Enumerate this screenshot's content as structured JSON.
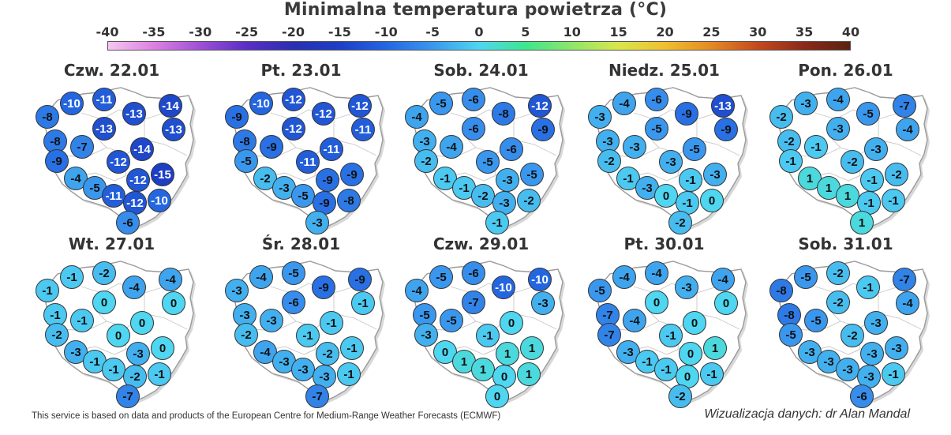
{
  "title": "Minimalna temperatura powietrza (°C)",
  "scale": {
    "labels": [
      "-40",
      "-35",
      "-30",
      "-25",
      "-20",
      "-15",
      "-10",
      "-5",
      "0",
      "5",
      "10",
      "15",
      "20",
      "25",
      "30",
      "35",
      "40"
    ],
    "values": [
      -40,
      -35,
      -30,
      -25,
      -20,
      -15,
      -10,
      -5,
      0,
      5,
      10,
      15,
      20,
      25,
      30,
      35,
      40
    ],
    "colors": [
      "#f4c7f0",
      "#dc7fe0",
      "#9d4fd6",
      "#5a2ec4",
      "#2a2fb0",
      "#1d3fc4",
      "#2466e0",
      "#3a97ee",
      "#4fd6f0",
      "#3ee68f",
      "#8ee66a",
      "#d8e64e",
      "#f0c030",
      "#e48a24",
      "#c44a1e",
      "#8c2a1a",
      "#5a2210"
    ]
  },
  "days": [
    {
      "label": "Czw. 22.01",
      "temps": [
        -10,
        -11,
        -8,
        -13,
        -14,
        -13,
        -8,
        -7,
        -13,
        -9,
        -14,
        -12,
        -4,
        -12,
        -15,
        -5,
        -11,
        -12,
        -10,
        -6
      ]
    },
    {
      "label": "Pt. 23.01",
      "temps": [
        -10,
        -12,
        -9,
        -12,
        -12,
        -11,
        -8,
        -9,
        -12,
        -5,
        -11,
        -11,
        -2,
        -9,
        -9,
        -3,
        -5,
        -9,
        -8,
        -3
      ]
    },
    {
      "label": "Sob. 24.01",
      "temps": [
        -5,
        -6,
        -4,
        -8,
        -12,
        -9,
        -3,
        -4,
        -6,
        -2,
        -6,
        -5,
        -1,
        -3,
        -5,
        -1,
        -2,
        -3,
        -2,
        -1
      ]
    },
    {
      "label": "Niedz. 25.01",
      "temps": [
        -4,
        -6,
        -3,
        -9,
        -13,
        -9,
        -3,
        -3,
        -5,
        -2,
        -5,
        -3,
        -1,
        -1,
        -3,
        -3,
        0,
        -1,
        0,
        -2
      ]
    },
    {
      "label": "Pon. 26.01",
      "temps": [
        -3,
        -4,
        -2,
        -5,
        -7,
        -4,
        -2,
        -1,
        -3,
        -1,
        -3,
        -2,
        1,
        -1,
        -2,
        1,
        1,
        -1,
        -1,
        1
      ]
    },
    {
      "label": "Wt. 27.01",
      "temps": [
        -1,
        -2,
        -1,
        -4,
        -4,
        0,
        -1,
        -1,
        0,
        -2,
        0,
        0,
        -3,
        -3,
        0,
        -1,
        -1,
        -2,
        -1,
        -7
      ]
    },
    {
      "label": "Śr. 28.01",
      "temps": [
        -4,
        -5,
        -3,
        -9,
        -9,
        -1,
        -3,
        -3,
        -6,
        -2,
        -1,
        -1,
        -4,
        -2,
        -1,
        -3,
        -3,
        -3,
        -1,
        -7
      ]
    },
    {
      "label": "Czw. 29.01",
      "temps": [
        -5,
        -6,
        -4,
        -10,
        -10,
        -3,
        -5,
        -5,
        -7,
        -3,
        0,
        -1,
        0,
        1,
        1,
        1,
        1,
        0,
        1,
        0
      ]
    },
    {
      "label": "Pt. 30.01",
      "temps": [
        -4,
        -4,
        -5,
        -3,
        -4,
        0,
        -7,
        -4,
        0,
        -7,
        0,
        -1,
        -3,
        0,
        1,
        -1,
        -1,
        0,
        -1,
        -2
      ]
    },
    {
      "label": "Sob. 31.01",
      "temps": [
        -5,
        -2,
        -8,
        -1,
        -7,
        -4,
        -8,
        -5,
        -2,
        -5,
        -3,
        -2,
        -3,
        -3,
        -3,
        -3,
        -3,
        -3,
        -1,
        -6
      ]
    }
  ],
  "footer": {
    "source": "This service is based on data and products of the European Centre for Medium-Range Weather Forecasts (ECMWF)",
    "credit": "Wizualizacja danych: dr Alan Mandal"
  }
}
